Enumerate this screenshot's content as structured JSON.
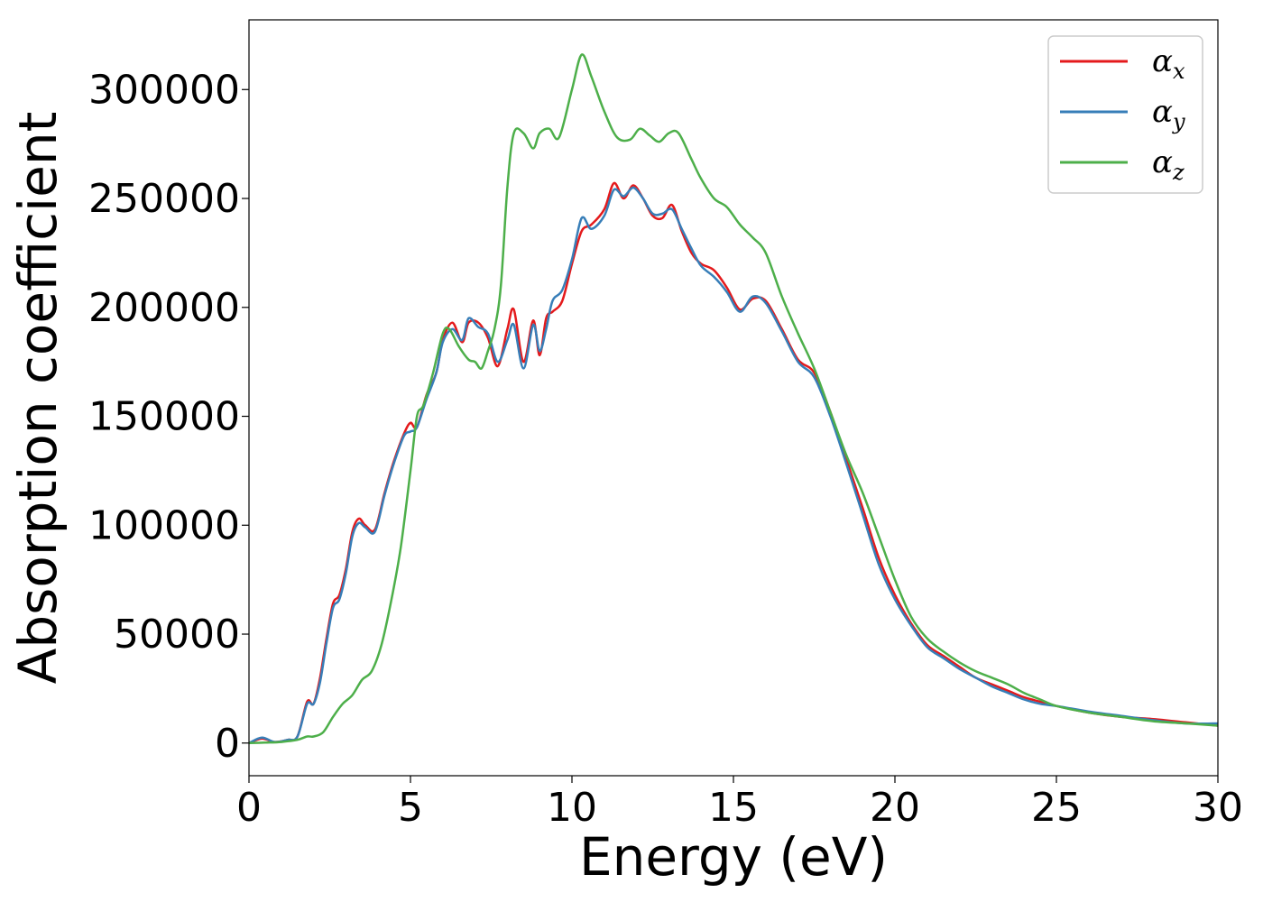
{
  "chart_data": {
    "type": "line",
    "xlabel": "Energy (eV)",
    "ylabel": "Absorption coefficient",
    "xlim": [
      0,
      30
    ],
    "ylim": [
      -15000,
      332000
    ],
    "xticks": [
      0,
      5,
      10,
      15,
      20,
      25,
      30
    ],
    "xtick_labels": [
      "0",
      "5",
      "10",
      "15",
      "20",
      "25",
      "30"
    ],
    "yticks": [
      0,
      50000,
      100000,
      150000,
      200000,
      250000,
      300000
    ],
    "ytick_labels": [
      "0",
      "50000",
      "100000",
      "150000",
      "200000",
      "250000",
      "300000"
    ],
    "grid": false,
    "legend_position": "top-right",
    "series": [
      {
        "name": "α_x",
        "legend_symbol": "α",
        "legend_subscript": "x",
        "color": "#e41a1c",
        "x": [
          0,
          0.4,
          0.8,
          1.2,
          1.5,
          1.8,
          2.0,
          2.2,
          2.4,
          2.6,
          2.8,
          3.0,
          3.2,
          3.4,
          3.6,
          3.9,
          4.2,
          4.5,
          4.8,
          5.0,
          5.2,
          5.5,
          5.8,
          6.0,
          6.3,
          6.6,
          6.8,
          7.1,
          7.4,
          7.7,
          8.0,
          8.2,
          8.5,
          8.8,
          9.0,
          9.2,
          9.4,
          9.7,
          10.0,
          10.3,
          10.6,
          11.0,
          11.3,
          11.6,
          11.9,
          12.2,
          12.5,
          12.8,
          13.1,
          13.4,
          13.7,
          14.0,
          14.4,
          14.8,
          15.2,
          15.6,
          16.0,
          16.5,
          17.0,
          17.5,
          18.0,
          18.5,
          19.0,
          19.5,
          20.0,
          20.5,
          21.0,
          21.5,
          22.0,
          22.5,
          23.0,
          23.5,
          24.0,
          24.5,
          25.0,
          26.0,
          27.0,
          28.0,
          29.0,
          30.0
        ],
        "y": [
          0,
          2000,
          500,
          1500,
          3000,
          19000,
          18000,
          30000,
          48000,
          64000,
          68000,
          80000,
          97000,
          103000,
          100000,
          98000,
          115000,
          130000,
          142000,
          147000,
          145000,
          160000,
          170000,
          185000,
          193000,
          184000,
          193000,
          193000,
          186000,
          173000,
          190000,
          199000,
          175000,
          194000,
          178000,
          195000,
          198000,
          203000,
          220000,
          235000,
          238000,
          245000,
          257000,
          250000,
          256000,
          250000,
          242000,
          241000,
          247000,
          235000,
          225000,
          220000,
          217000,
          209000,
          199000,
          204000,
          203000,
          190000,
          176000,
          170000,
          152000,
          130000,
          108000,
          85000,
          68000,
          55000,
          45000,
          40000,
          35000,
          30000,
          27000,
          24000,
          21000,
          19000,
          17000,
          14000,
          12000,
          11000,
          9500,
          8000
        ]
      },
      {
        "name": "α_y",
        "legend_symbol": "α",
        "legend_subscript": "y",
        "color": "#377eb8",
        "x": [
          0,
          0.4,
          0.8,
          1.2,
          1.5,
          1.8,
          2.0,
          2.2,
          2.4,
          2.6,
          2.8,
          3.0,
          3.2,
          3.4,
          3.6,
          3.9,
          4.2,
          4.5,
          4.8,
          5.0,
          5.2,
          5.5,
          5.8,
          6.0,
          6.3,
          6.6,
          6.8,
          7.1,
          7.4,
          7.7,
          8.0,
          8.2,
          8.5,
          8.8,
          9.0,
          9.2,
          9.4,
          9.7,
          10.0,
          10.3,
          10.6,
          11.0,
          11.3,
          11.6,
          11.9,
          12.2,
          12.5,
          12.8,
          13.1,
          13.4,
          13.7,
          14.0,
          14.4,
          14.8,
          15.2,
          15.6,
          16.0,
          16.5,
          17.0,
          17.5,
          18.0,
          18.5,
          19.0,
          19.5,
          20.0,
          20.5,
          21.0,
          21.5,
          22.0,
          22.5,
          23.0,
          23.5,
          24.0,
          24.5,
          25.0,
          26.0,
          27.0,
          28.0,
          29.0,
          30.0
        ],
        "y": [
          0,
          2500,
          500,
          1500,
          3000,
          18000,
          18000,
          28000,
          46000,
          62000,
          66000,
          78000,
          95000,
          101000,
          99000,
          97000,
          114000,
          129000,
          141000,
          143000,
          145000,
          158000,
          170000,
          184000,
          190000,
          185000,
          195000,
          191000,
          188000,
          175000,
          185000,
          192000,
          172000,
          192000,
          180000,
          190000,
          203000,
          208000,
          222000,
          241000,
          236000,
          242000,
          254000,
          251000,
          255000,
          250000,
          243000,
          243000,
          245000,
          236000,
          227000,
          219000,
          214000,
          207000,
          198000,
          205000,
          202000,
          189000,
          175000,
          168000,
          150000,
          128000,
          105000,
          82000,
          66000,
          54000,
          44000,
          39000,
          34000,
          30000,
          26000,
          23000,
          20000,
          18000,
          17000,
          14500,
          12500,
          10500,
          9000,
          9000
        ]
      },
      {
        "name": "α_z",
        "legend_symbol": "α",
        "legend_subscript": "z",
        "color": "#4daf4a",
        "x": [
          0,
          0.5,
          1.0,
          1.5,
          1.8,
          2.0,
          2.3,
          2.6,
          2.9,
          3.2,
          3.5,
          3.8,
          4.1,
          4.4,
          4.7,
          5.0,
          5.2,
          5.4,
          5.7,
          6.0,
          6.2,
          6.5,
          6.8,
          7.0,
          7.2,
          7.4,
          7.6,
          7.8,
          8.0,
          8.2,
          8.5,
          8.8,
          9.0,
          9.3,
          9.6,
          10.0,
          10.3,
          10.6,
          11.0,
          11.4,
          11.8,
          12.1,
          12.4,
          12.7,
          13.0,
          13.3,
          13.7,
          14.0,
          14.4,
          14.8,
          15.2,
          15.6,
          16.0,
          16.5,
          17.0,
          17.5,
          18.0,
          18.5,
          19.0,
          19.5,
          20.0,
          20.5,
          21.0,
          21.5,
          22.0,
          22.5,
          23.0,
          23.5,
          24.0,
          24.5,
          25.0,
          26.0,
          27.0,
          28.0,
          29.0,
          30.0
        ],
        "y": [
          0,
          200,
          500,
          1500,
          3000,
          3000,
          5000,
          12000,
          18000,
          22000,
          29000,
          33000,
          45000,
          65000,
          90000,
          125000,
          150000,
          155000,
          170000,
          188000,
          190000,
          182000,
          176000,
          175000,
          172000,
          180000,
          190000,
          210000,
          255000,
          280000,
          280000,
          273000,
          280000,
          282000,
          278000,
          300000,
          316000,
          306000,
          290000,
          278000,
          277000,
          282000,
          279000,
          276000,
          280000,
          280000,
          268000,
          259000,
          250000,
          246000,
          238000,
          232000,
          225000,
          205000,
          188000,
          172000,
          152000,
          132000,
          115000,
          95000,
          75000,
          58000,
          48000,
          42000,
          37000,
          33000,
          30000,
          27000,
          23000,
          20000,
          17000,
          14000,
          12000,
          10000,
          9000,
          8000
        ]
      }
    ]
  }
}
